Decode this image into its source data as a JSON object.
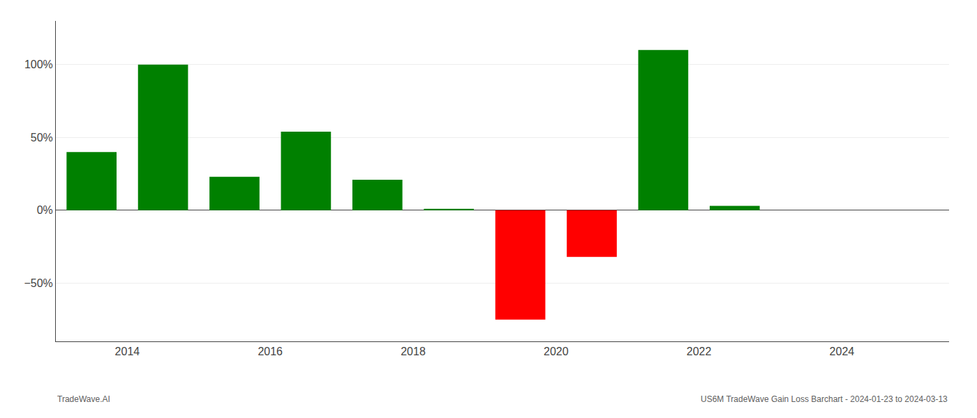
{
  "chart_data": {
    "type": "bar",
    "x": [
      2013.5,
      2014.5,
      2015.5,
      2016.5,
      2017.5,
      2018.5,
      2019.5,
      2020.5,
      2021.5,
      2022.5
    ],
    "values": [
      40.0,
      100.0,
      23.0,
      54.0,
      21.0,
      1.0,
      -75.0,
      -32.0,
      110.0,
      3.0
    ],
    "colors": [
      "#008000",
      "#008000",
      "#008000",
      "#008000",
      "#008000",
      "#008000",
      "#ff0000",
      "#ff0000",
      "#008000",
      "#008000"
    ],
    "xlim": [
      2013.0,
      2025.5
    ],
    "xticks": [
      2014,
      2016,
      2018,
      2020,
      2022,
      2024
    ],
    "ylim": [
      -90,
      130
    ],
    "yticks": [
      {
        "value": -50,
        "label": "−50%"
      },
      {
        "value": 0,
        "label": "0%"
      },
      {
        "value": 50,
        "label": "50%"
      },
      {
        "value": 100,
        "label": "100%"
      }
    ],
    "grid": true,
    "annotations": [
      "TradeWave.AI",
      "US6M TradeWave Gain Loss Barchart - 2024-01-23 to 2024-03-13"
    ]
  }
}
